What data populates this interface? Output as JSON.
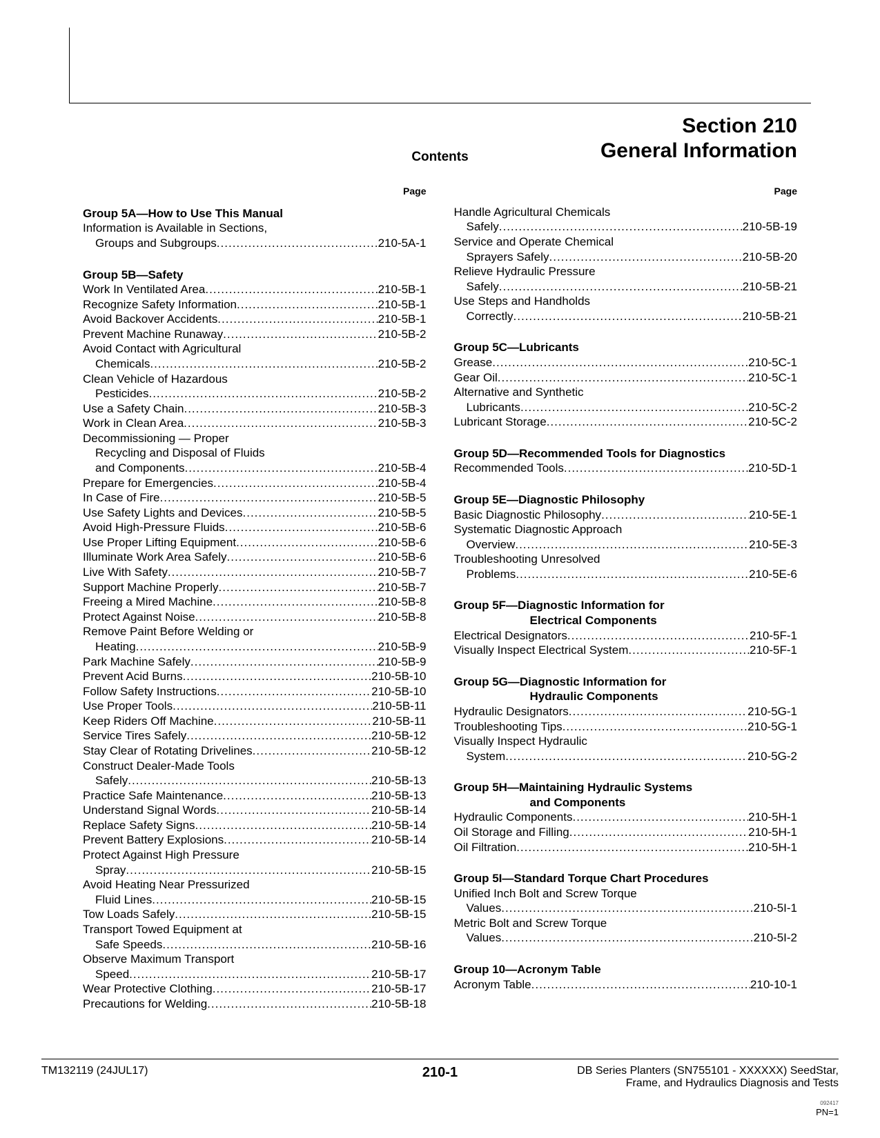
{
  "header": {
    "section_line1": "Section 210",
    "section_line2": "General Information",
    "contents": "Contents",
    "page_label": "Page"
  },
  "left_col": [
    {
      "type": "group",
      "text": "Group 5A—How to Use This Manual"
    },
    {
      "type": "wrap",
      "line1": "Information is Available in Sections,",
      "line2": "Groups and Subgroups",
      "page": "210-5A-1"
    },
    {
      "type": "space"
    },
    {
      "type": "group",
      "text": "Group 5B—Safety"
    },
    {
      "type": "entry",
      "label": "Work In Ventilated Area",
      "page": "210-5B-1"
    },
    {
      "type": "entry",
      "label": "Recognize Safety Information",
      "page": "210-5B-1"
    },
    {
      "type": "entry",
      "label": "Avoid Backover Accidents",
      "page": "210-5B-1"
    },
    {
      "type": "entry",
      "label": "Prevent Machine Runaway",
      "page": "210-5B-2"
    },
    {
      "type": "wrap",
      "line1": "Avoid Contact with Agricultural",
      "line2": "Chemicals",
      "page": "210-5B-2"
    },
    {
      "type": "wrap",
      "line1": "Clean Vehicle of Hazardous",
      "line2": "Pesticides",
      "page": "210-5B-2"
    },
    {
      "type": "entry",
      "label": "Use a Safety Chain",
      "page": "210-5B-3"
    },
    {
      "type": "entry",
      "label": "Work in Clean Area",
      "page": "210-5B-3"
    },
    {
      "type": "wrap3",
      "line1": "Decommissioning — Proper",
      "line2": "Recycling and Disposal of Fluids",
      "line3": "and Components",
      "page": "210-5B-4"
    },
    {
      "type": "entry",
      "label": "Prepare for Emergencies",
      "page": "210-5B-4"
    },
    {
      "type": "entry",
      "label": "In Case of Fire",
      "page": "210-5B-5"
    },
    {
      "type": "entry",
      "label": "Use Safety Lights and Devices",
      "page": "210-5B-5"
    },
    {
      "type": "entry",
      "label": "Avoid High-Pressure Fluids",
      "page": "210-5B-6"
    },
    {
      "type": "entry",
      "label": "Use Proper Lifting Equipment",
      "page": "210-5B-6"
    },
    {
      "type": "entry",
      "label": "Illuminate Work Area Safely",
      "page": "210-5B-6"
    },
    {
      "type": "entry",
      "label": "Live With Safety",
      "page": "210-5B-7"
    },
    {
      "type": "entry",
      "label": "Support Machine Properly",
      "page": "210-5B-7"
    },
    {
      "type": "entry",
      "label": "Freeing a Mired Machine",
      "page": "210-5B-8"
    },
    {
      "type": "entry",
      "label": "Protect Against Noise",
      "page": "210-5B-8"
    },
    {
      "type": "wrap",
      "line1": "Remove Paint Before Welding or",
      "line2": "Heating",
      "page": "210-5B-9"
    },
    {
      "type": "entry",
      "label": "Park Machine Safely",
      "page": "210-5B-9"
    },
    {
      "type": "entry",
      "label": "Prevent Acid Burns",
      "page": "210-5B-10"
    },
    {
      "type": "entry",
      "label": "Follow Safety Instructions",
      "page": "210-5B-10"
    },
    {
      "type": "entry",
      "label": "Use Proper Tools",
      "page": "210-5B-11"
    },
    {
      "type": "entry",
      "label": "Keep Riders Off Machine",
      "page": "210-5B-11"
    },
    {
      "type": "entry",
      "label": "Service Tires Safely",
      "page": "210-5B-12"
    },
    {
      "type": "entry",
      "label": "Stay Clear of Rotating Drivelines",
      "page": "210-5B-12"
    },
    {
      "type": "wrap",
      "line1": "Construct Dealer-Made Tools",
      "line2": "Safely",
      "page": "210-5B-13"
    },
    {
      "type": "entry",
      "label": "Practice Safe Maintenance",
      "page": "210-5B-13"
    },
    {
      "type": "entry",
      "label": "Understand Signal Words",
      "page": "210-5B-14"
    },
    {
      "type": "entry",
      "label": "Replace Safety Signs",
      "page": "210-5B-14"
    },
    {
      "type": "entry",
      "label": "Prevent Battery Explosions",
      "page": "210-5B-14"
    },
    {
      "type": "wrap",
      "line1": "Protect Against High Pressure",
      "line2": "Spray",
      "page": "210-5B-15"
    },
    {
      "type": "wrap",
      "line1": "Avoid Heating Near Pressurized",
      "line2": "Fluid Lines",
      "page": "210-5B-15"
    },
    {
      "type": "entry",
      "label": "Tow Loads Safely",
      "page": "210-5B-15"
    },
    {
      "type": "wrap",
      "line1": "Transport Towed Equipment at",
      "line2": "Safe Speeds",
      "page": "210-5B-16"
    },
    {
      "type": "wrap",
      "line1": "Observe Maximum Transport",
      "line2": "Speed",
      "page": "210-5B-17"
    },
    {
      "type": "entry",
      "label": "Wear Protective Clothing",
      "page": "210-5B-17"
    },
    {
      "type": "entry",
      "label": "Precautions for Welding",
      "page": "210-5B-18"
    }
  ],
  "right_col": [
    {
      "type": "wrap",
      "line1": "Handle Agricultural Chemicals",
      "line2": "Safely",
      "page": "210-5B-19"
    },
    {
      "type": "wrap",
      "line1": "Service and Operate Chemical",
      "line2": "Sprayers Safely",
      "page": "210-5B-20"
    },
    {
      "type": "wrap",
      "line1": "Relieve Hydraulic Pressure",
      "line2": "Safely",
      "page": "210-5B-21"
    },
    {
      "type": "wrap",
      "line1": "Use Steps and Handholds",
      "line2": "Correctly",
      "page": "210-5B-21"
    },
    {
      "type": "space"
    },
    {
      "type": "group",
      "text": "Group 5C—Lubricants"
    },
    {
      "type": "entry",
      "label": "Grease",
      "page": "210-5C-1"
    },
    {
      "type": "entry",
      "label": "Gear Oil",
      "page": "210-5C-1"
    },
    {
      "type": "wrap",
      "line1": "Alternative and Synthetic",
      "line2": "Lubricants",
      "page": "210-5C-2"
    },
    {
      "type": "entry",
      "label": "Lubricant Storage",
      "page": "210-5C-2"
    },
    {
      "type": "space"
    },
    {
      "type": "group",
      "text": "Group 5D—Recommended Tools for Diagnostics"
    },
    {
      "type": "entry",
      "label": "Recommended Tools",
      "page": "210-5D-1"
    },
    {
      "type": "space"
    },
    {
      "type": "group",
      "text": "Group 5E—Diagnostic Philosophy"
    },
    {
      "type": "entry",
      "label": "Basic Diagnostic Philosophy",
      "page": "210-5E-1"
    },
    {
      "type": "wrap",
      "line1": "Systematic Diagnostic Approach",
      "line2": "Overview",
      "page": "210-5E-3"
    },
    {
      "type": "wrap",
      "line1": "Troubleshooting Unresolved",
      "line2": "Problems",
      "page": "210-5E-6"
    },
    {
      "type": "space"
    },
    {
      "type": "group2",
      "line1": "Group 5F—Diagnostic Information for",
      "line2": "Electrical Components"
    },
    {
      "type": "entry",
      "label": "Electrical Designators",
      "page": "210-5F-1"
    },
    {
      "type": "entry",
      "label": "Visually Inspect Electrical System",
      "page": "210-5F-1"
    },
    {
      "type": "space"
    },
    {
      "type": "group2",
      "line1": "Group 5G—Diagnostic Information for",
      "line2": "Hydraulic Components"
    },
    {
      "type": "entry",
      "label": "Hydraulic Designators",
      "page": "210-5G-1"
    },
    {
      "type": "entry",
      "label": "Troubleshooting Tips",
      "page": "210-5G-1"
    },
    {
      "type": "wrap",
      "line1": "Visually Inspect Hydraulic",
      "line2": "System",
      "page": "210-5G-2"
    },
    {
      "type": "space"
    },
    {
      "type": "group2",
      "line1": "Group 5H—Maintaining Hydraulic Systems",
      "line2": "and Components"
    },
    {
      "type": "entry",
      "label": "Hydraulic Components",
      "page": "210-5H-1"
    },
    {
      "type": "entry",
      "label": "Oil Storage and Filling",
      "page": "210-5H-1"
    },
    {
      "type": "entry",
      "label": "Oil Filtration",
      "page": "210-5H-1"
    },
    {
      "type": "space"
    },
    {
      "type": "group",
      "text": "Group 5I—Standard Torque Chart Procedures"
    },
    {
      "type": "wrap",
      "line1": "Unified Inch Bolt and Screw Torque",
      "line2": "Values",
      "page": "210-5I-1"
    },
    {
      "type": "wrap",
      "line1": "Metric Bolt and Screw Torque",
      "line2": "Values",
      "page": "210-5I-2"
    },
    {
      "type": "space"
    },
    {
      "type": "group",
      "text": "Group 10—Acronym Table"
    },
    {
      "type": "entry",
      "label": "Acronym Table",
      "page": "210-10-1"
    }
  ],
  "footer": {
    "left": "TM132119 (24JUL17)",
    "center": "210-1",
    "right1": "DB Series Planters (SN755101 - XXXXXX) SeedStar,",
    "right2": "Frame, and Hydraulics Diagnosis and Tests",
    "tiny": "092417",
    "pn": "PN=1"
  }
}
